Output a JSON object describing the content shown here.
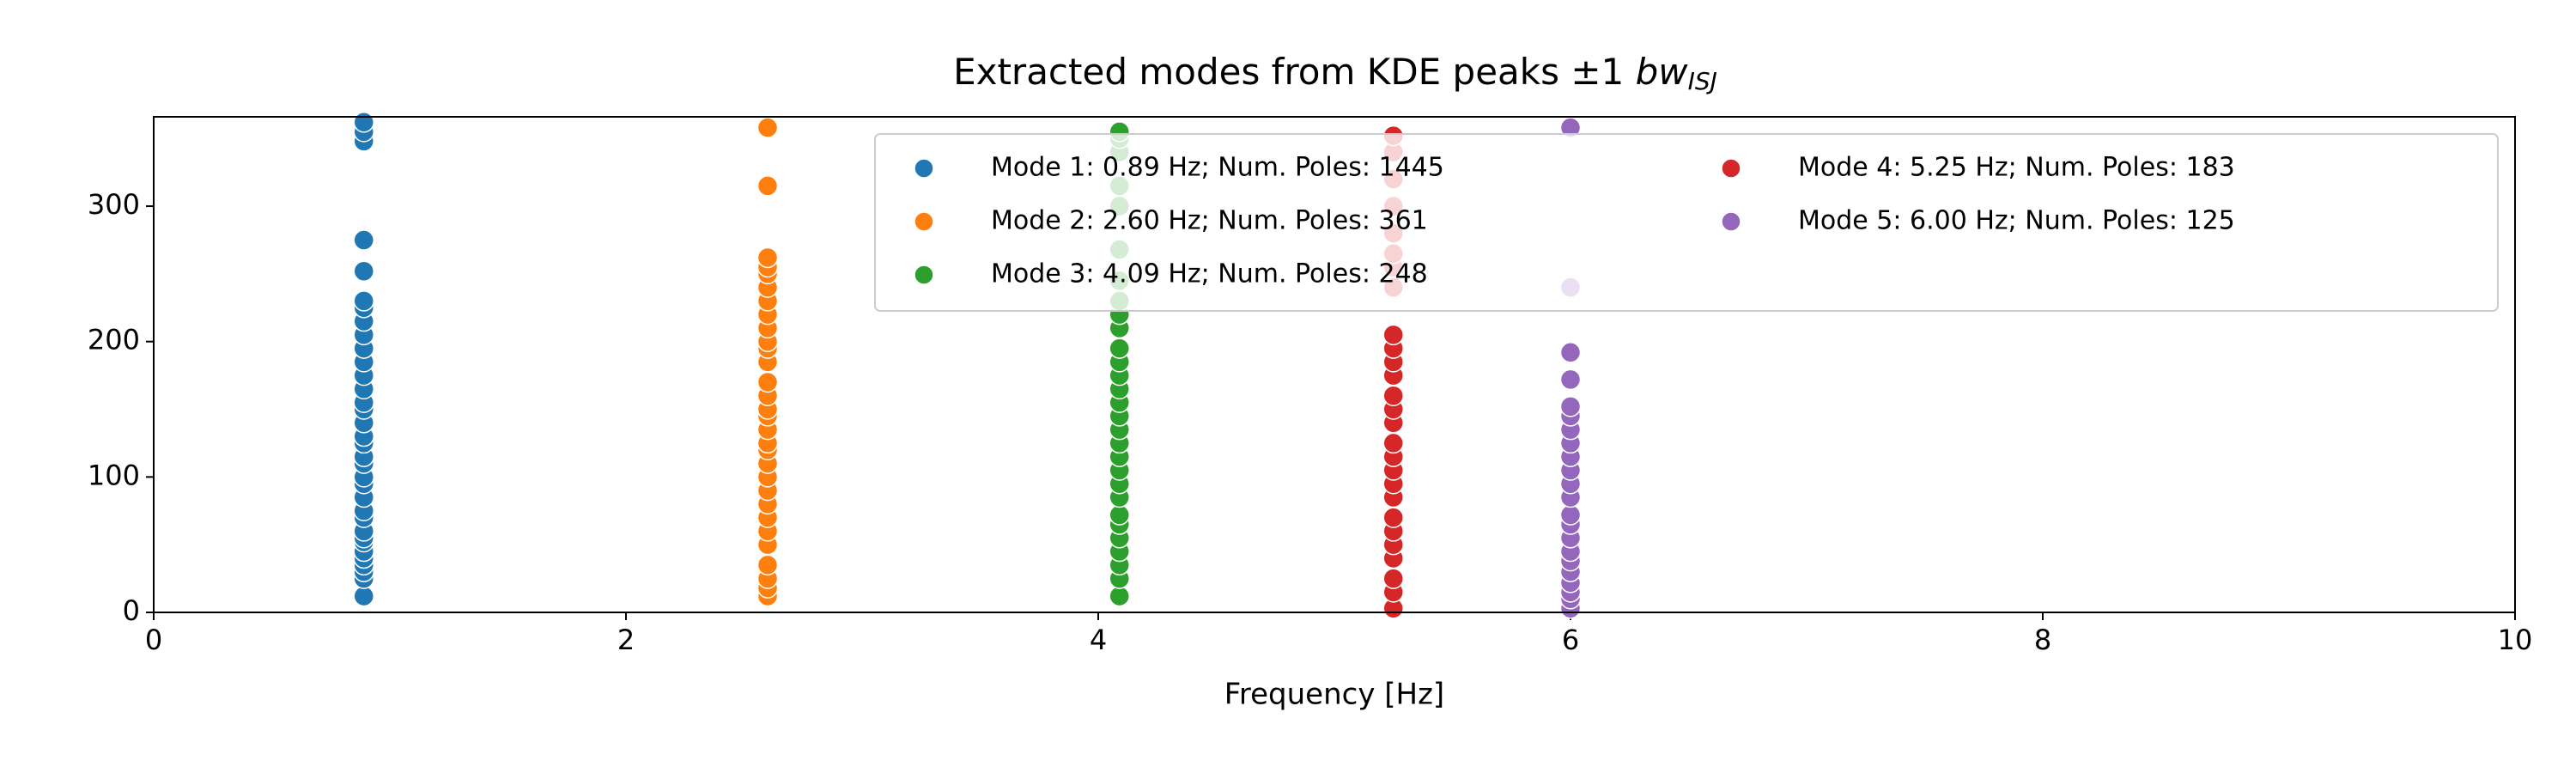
{
  "chart_data": {
    "type": "scatter",
    "title": "Extracted modes from KDE peaks ±1",
    "title_math": "bw",
    "title_subscript": "ISJ",
    "x_label": "Frequency [Hz]",
    "xlim": [
      0,
      10
    ],
    "xticks": [
      0,
      2,
      4,
      6,
      8,
      10
    ],
    "ylim": [
      0,
      366
    ],
    "yticks": [
      0,
      100,
      200,
      300
    ],
    "grid": false,
    "legend_loc": "upper right",
    "legend_columns": 2,
    "series": [
      {
        "name": "Mode 1: 0.89 Hz; Num. Poles: 1445",
        "color": "#1f77b4",
        "x": [
          0.89,
          0.89,
          0.89,
          0.89,
          0.89,
          0.89,
          0.89,
          0.89,
          0.89,
          0.89,
          0.89,
          0.89,
          0.89,
          0.89,
          0.89,
          0.89,
          0.89,
          0.89,
          0.89,
          0.89,
          0.89,
          0.89,
          0.89,
          0.89,
          0.89,
          0.89,
          0.89,
          0.89,
          0.89,
          0.89,
          0.89,
          0.89,
          0.89,
          0.89
        ],
        "values": [
          12,
          25,
          30,
          35,
          40,
          45,
          52,
          55,
          60,
          70,
          75,
          85,
          95,
          100,
          110,
          115,
          125,
          130,
          140,
          150,
          155,
          165,
          175,
          185,
          195,
          205,
          215,
          225,
          230,
          252,
          275,
          348,
          355,
          362
        ]
      },
      {
        "name": "Mode 2: 2.60 Hz; Num. Poles: 361",
        "color": "#ff7f0e",
        "x": [
          2.6,
          2.6,
          2.6,
          2.6,
          2.6,
          2.6,
          2.6,
          2.6,
          2.6,
          2.6,
          2.6,
          2.6,
          2.6,
          2.6,
          2.6,
          2.6,
          2.6,
          2.6,
          2.6,
          2.6,
          2.6,
          2.6,
          2.6,
          2.6,
          2.6,
          2.6,
          2.6,
          2.6,
          2.6,
          2.6
        ],
        "values": [
          12,
          18,
          25,
          35,
          50,
          60,
          70,
          80,
          90,
          100,
          110,
          120,
          125,
          135,
          145,
          150,
          160,
          170,
          185,
          195,
          200,
          210,
          220,
          230,
          240,
          250,
          255,
          262,
          315,
          358
        ]
      },
      {
        "name": "Mode 3: 4.09 Hz; Num. Poles: 248",
        "color": "#2ca02c",
        "x": [
          4.09,
          4.09,
          4.09,
          4.09,
          4.09,
          4.09,
          4.09,
          4.09,
          4.09,
          4.09,
          4.09,
          4.09,
          4.09,
          4.09,
          4.09,
          4.09,
          4.09,
          4.09,
          4.09,
          4.09,
          4.09,
          4.09,
          4.09,
          4.09,
          4.09,
          4.09,
          4.09,
          4.09,
          4.09
        ],
        "values": [
          12,
          25,
          35,
          45,
          55,
          65,
          72,
          85,
          95,
          105,
          115,
          125,
          135,
          145,
          155,
          165,
          175,
          185,
          195,
          210,
          220,
          230,
          245,
          268,
          300,
          315,
          340,
          350,
          355
        ]
      },
      {
        "name": "Mode 4: 5.25 Hz; Num. Poles: 183",
        "color": "#d62728",
        "x": [
          5.25,
          5.25,
          5.25,
          5.25,
          5.25,
          5.25,
          5.25,
          5.25,
          5.25,
          5.25,
          5.25,
          5.25,
          5.25,
          5.25,
          5.25,
          5.25,
          5.25,
          5.25,
          5.25,
          5.25,
          5.25,
          5.25,
          5.25,
          5.25,
          5.25,
          5.25,
          5.25
        ],
        "values": [
          3,
          15,
          25,
          40,
          50,
          60,
          70,
          85,
          95,
          105,
          115,
          125,
          140,
          150,
          160,
          175,
          185,
          195,
          205,
          240,
          255,
          265,
          280,
          300,
          320,
          340,
          352
        ]
      },
      {
        "name": "Mode 5: 6.00 Hz; Num. Poles: 125",
        "color": "#9467bd",
        "x": [
          6,
          6,
          6,
          6,
          6,
          6,
          6,
          6,
          6,
          6,
          6,
          6,
          6,
          6,
          6,
          6,
          6,
          6,
          6,
          6,
          6,
          6
        ],
        "values": [
          3,
          10,
          15,
          22,
          30,
          38,
          45,
          55,
          65,
          72,
          85,
          95,
          105,
          115,
          125,
          135,
          145,
          152,
          172,
          192,
          240,
          358
        ]
      }
    ]
  }
}
